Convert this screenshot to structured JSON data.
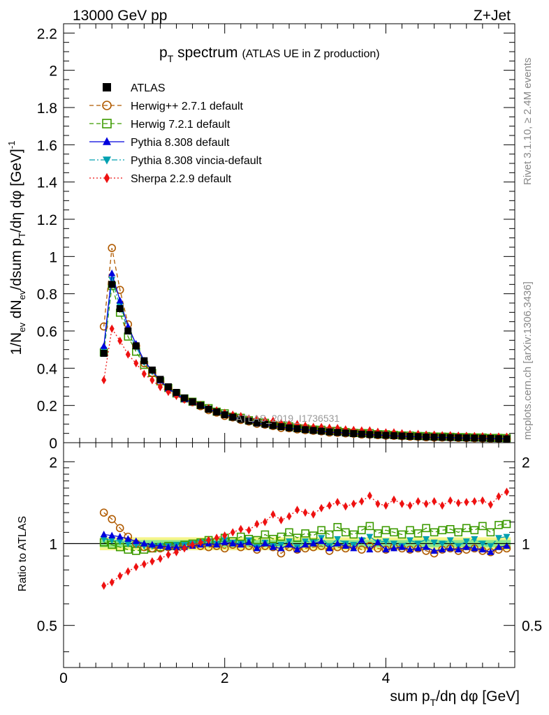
{
  "header": {
    "energy": "13000 GeV pp",
    "process": "Z+Jet",
    "title_pre": "p",
    "title_sub": "T",
    "title_main": " spectrum",
    "title_note": "(ATLAS UE in Z production)",
    "watermark": "ATLAS_2019_I1736531",
    "rivet_label": "Rivet 3.1.10, ≥ 2.4M events",
    "mcplots_label": "mcplots.cern.ch [arXiv:1306.3436]"
  },
  "axes": {
    "ylabel_main": "1/N_ev dN_ev/dsum p_T/dη dφ [GeV]^-1",
    "ylabel_ratio": "Ratio to ATLAS",
    "xlabel": "sum p_T/dη dφ [GeV]"
  },
  "chart_data": {
    "type": "line",
    "xlim": [
      0,
      5.6
    ],
    "ylim_main": [
      0,
      2.25
    ],
    "ylim_ratio": [
      0.35,
      2.35
    ],
    "ratio_log_scale": true,
    "x_ticks": [
      "0",
      "2",
      "4"
    ],
    "y_ticks_main": [
      "0",
      "0.2",
      "0.4",
      "0.6",
      "0.8",
      "1",
      "1.2",
      "1.4",
      "1.6",
      "1.8",
      "2",
      "2.2"
    ],
    "y_ticks_ratio": [
      "0.5",
      "1",
      "2"
    ],
    "legend_position": "top-left",
    "x": [
      0.5,
      0.6,
      0.7,
      0.8,
      0.9,
      1.0,
      1.1,
      1.2,
      1.3,
      1.4,
      1.5,
      1.6,
      1.7,
      1.8,
      1.9,
      2.0,
      2.1,
      2.2,
      2.3,
      2.4,
      2.5,
      2.6,
      2.7,
      2.8,
      2.9,
      3.0,
      3.1,
      3.2,
      3.3,
      3.4,
      3.5,
      3.6,
      3.7,
      3.8,
      3.9,
      4.0,
      4.1,
      4.2,
      4.3,
      4.4,
      4.5,
      4.6,
      4.7,
      4.8,
      4.9,
      5.0,
      5.1,
      5.2,
      5.3,
      5.4,
      5.5
    ],
    "data_values": [
      0.48,
      0.85,
      0.72,
      0.6,
      0.52,
      0.44,
      0.39,
      0.34,
      0.3,
      0.27,
      0.24,
      0.22,
      0.2,
      0.18,
      0.165,
      0.15,
      0.137,
      0.126,
      0.116,
      0.107,
      0.099,
      0.092,
      0.086,
      0.08,
      0.075,
      0.07,
      0.066,
      0.062,
      0.058,
      0.055,
      0.052,
      0.049,
      0.046,
      0.044,
      0.042,
      0.04,
      0.038,
      0.036,
      0.034,
      0.033,
      0.031,
      0.03,
      0.029,
      0.028,
      0.027,
      0.026,
      0.025,
      0.024,
      0.023,
      0.022,
      0.021
    ],
    "series": [
      {
        "name": "ATLAS",
        "color": "#000000",
        "marker": "square-filled",
        "line": "none",
        "ratio": [
          1,
          1,
          1,
          1,
          1,
          1,
          1,
          1,
          1,
          1,
          1,
          1,
          1,
          1,
          1,
          1,
          1,
          1,
          1,
          1,
          1,
          1,
          1,
          1,
          1,
          1,
          1,
          1,
          1,
          1,
          1,
          1,
          1,
          1,
          1,
          1,
          1,
          1,
          1,
          1,
          1,
          1,
          1,
          1,
          1,
          1,
          1,
          1,
          1,
          1,
          1
        ]
      },
      {
        "name": "Herwig++ 2.7.1 default",
        "color": "#b05a00",
        "marker": "circle-open",
        "line": "dashed",
        "ratio": [
          1.3,
          1.23,
          1.14,
          1.06,
          1.0,
          0.97,
          0.96,
          0.96,
          0.97,
          0.97,
          0.98,
          0.99,
          0.98,
          0.97,
          0.98,
          0.96,
          0.99,
          0.97,
          0.98,
          0.95,
          0.98,
          0.97,
          0.92,
          0.97,
          0.95,
          0.96,
          0.97,
          0.98,
          0.94,
          0.97,
          0.96,
          0.98,
          0.95,
          0.98,
          0.96,
          0.95,
          0.97,
          0.96,
          0.95,
          0.96,
          0.94,
          0.92,
          0.95,
          0.96,
          0.94,
          0.95,
          0.96,
          0.94,
          0.93,
          0.95,
          0.96
        ]
      },
      {
        "name": "Herwig 7.2.1 default",
        "color": "#3c9a00",
        "marker": "square-open",
        "line": "dashed",
        "ratio": [
          1.01,
          0.99,
          0.97,
          0.95,
          0.94,
          0.95,
          0.96,
          0.97,
          0.98,
          0.98,
          0.99,
          1.0,
          1.01,
          1.03,
          1.01,
          1.05,
          1.02,
          1.06,
          1.04,
          1.03,
          1.08,
          1.04,
          1.06,
          1.1,
          1.05,
          1.09,
          1.07,
          1.12,
          1.08,
          1.15,
          1.1,
          1.08,
          1.12,
          1.16,
          1.09,
          1.12,
          1.1,
          1.08,
          1.12,
          1.09,
          1.14,
          1.1,
          1.12,
          1.13,
          1.1,
          1.14,
          1.12,
          1.16,
          1.1,
          1.17,
          1.18
        ]
      },
      {
        "name": "Pythia 8.308 default",
        "color": "#0000dd",
        "marker": "triangle-up",
        "line": "solid",
        "ratio": [
          1.08,
          1.07,
          1.06,
          1.04,
          1.02,
          1.0,
          0.99,
          0.98,
          0.97,
          0.97,
          0.97,
          0.98,
          0.99,
          1.0,
          0.99,
          1.01,
          1.0,
          0.99,
          1.01,
          0.96,
          1.0,
          0.97,
          0.96,
          0.99,
          0.95,
          0.99,
          1.0,
          1.02,
          0.96,
          1.0,
          0.98,
          0.96,
          1.03,
          0.95,
          1.01,
          0.95,
          0.96,
          0.97,
          0.95,
          0.96,
          0.97,
          0.94,
          0.95,
          0.96,
          0.95,
          0.97,
          0.96,
          0.95,
          0.93,
          0.97,
          0.98
        ]
      },
      {
        "name": "Pythia 8.308 vincia-default",
        "color": "#00a0b0",
        "marker": "triangle-down",
        "line": "dashdot",
        "ratio": [
          1.04,
          1.03,
          1.02,
          1.0,
          0.99,
          0.98,
          0.98,
          0.98,
          0.98,
          0.99,
          0.99,
          1.0,
          1.01,
          1.02,
          1.0,
          1.03,
          1.01,
          1.0,
          1.03,
          0.97,
          1.01,
          0.98,
          0.99,
          1.02,
          0.97,
          1.02,
          1.01,
          1.05,
          0.98,
          1.04,
          1.0,
          0.99,
          1.03,
          1.06,
          1.01,
          1.02,
          1.0,
          0.98,
          1.03,
          1.0,
          1.04,
          1.01,
          1.0,
          1.03,
          0.98,
          1.02,
          1.04,
          1.0,
          0.98,
          1.05,
          1.06
        ]
      },
      {
        "name": "Sherpa 2.2.9 default",
        "color": "#ee1111",
        "marker": "diamond",
        "line": "dotted",
        "ratio": [
          0.7,
          0.72,
          0.76,
          0.79,
          0.82,
          0.84,
          0.86,
          0.88,
          0.91,
          0.93,
          0.96,
          0.99,
          1.01,
          1.03,
          1.05,
          1.07,
          1.1,
          1.13,
          1.12,
          1.18,
          1.2,
          1.28,
          1.22,
          1.26,
          1.33,
          1.3,
          1.28,
          1.35,
          1.38,
          1.42,
          1.37,
          1.4,
          1.43,
          1.5,
          1.4,
          1.38,
          1.45,
          1.4,
          1.38,
          1.43,
          1.4,
          1.43,
          1.38,
          1.44,
          1.41,
          1.42,
          1.43,
          1.44,
          1.39,
          1.49,
          1.55
        ]
      }
    ],
    "band_green_halfwidth": 0.03,
    "band_yellow_halfwidth": 0.055
  }
}
